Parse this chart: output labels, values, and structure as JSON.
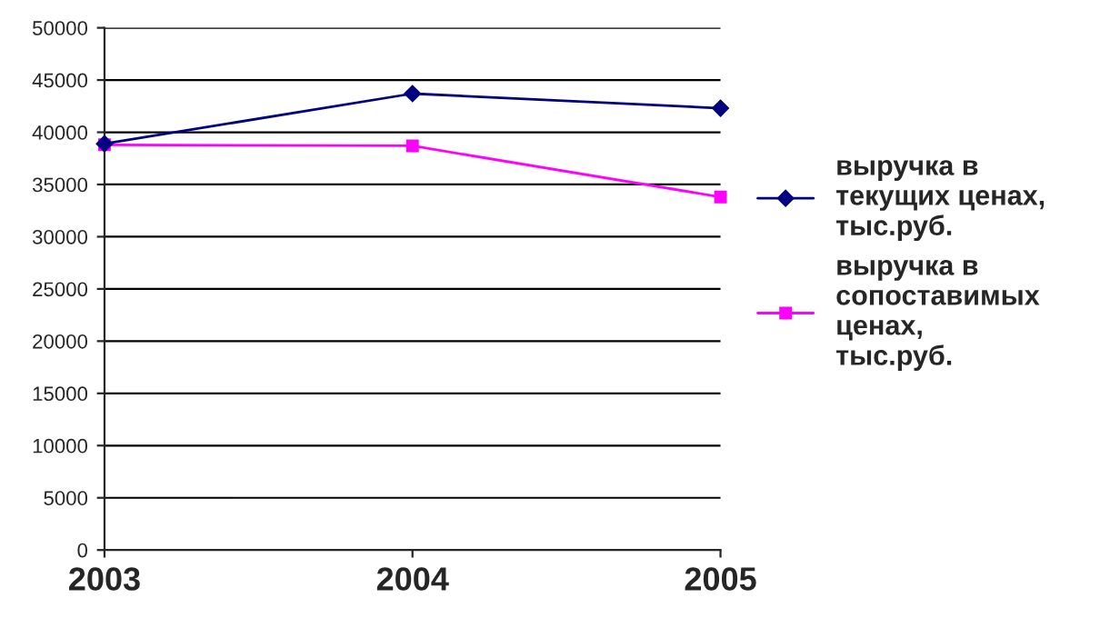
{
  "chart_data": {
    "type": "line",
    "x": [
      2003,
      2004,
      2005
    ],
    "xlim": [
      2003,
      2005
    ],
    "xticks": [
      2003,
      2004,
      2005
    ],
    "ylim": [
      0,
      50000
    ],
    "yticks": [
      0,
      5000,
      10000,
      15000,
      20000,
      25000,
      30000,
      35000,
      40000,
      45000,
      50000
    ],
    "grid": "y",
    "legend": "right",
    "series": [
      {
        "name": "выручка в текущих ценах, тыс.руб.",
        "color": "#000080",
        "marker": "diamond",
        "values": [
          38900,
          43700,
          42300
        ]
      },
      {
        "name": "выручка в сопоставимых ценах, тыс.руб.",
        "color": "#ff00ff",
        "marker": "square",
        "values": [
          38800,
          38700,
          33800
        ]
      }
    ]
  }
}
